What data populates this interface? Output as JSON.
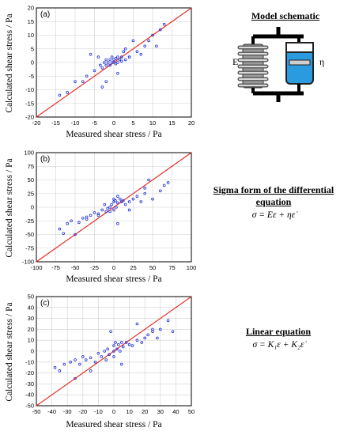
{
  "panels": [
    {
      "label": "(a)",
      "ylabel": "Calculated shear stress / Pa",
      "xlabel": "Measured shear stress / Pa",
      "ticks": [
        -20,
        -15,
        -10,
        -5,
        0,
        5,
        10,
        15,
        20
      ]
    },
    {
      "label": "(b)",
      "ylabel": "Calculated shear stress / Pa",
      "xlabel": "Measured shear stress / Pa",
      "ticks": [
        -100,
        -75,
        -50,
        -25,
        0,
        25,
        50,
        75,
        100
      ]
    },
    {
      "label": "(c)",
      "ylabel": "Calculated shear stress / Pa",
      "xlabel": "Measured shear stress / Pa",
      "ticks": [
        -50,
        -40,
        -30,
        -20,
        -10,
        0,
        10,
        20,
        30,
        40,
        50
      ]
    }
  ],
  "side": {
    "schematic_title": "Model schematic",
    "spring_label": "E",
    "dashpot_label": "η",
    "sigma_title": "Sigma form of the differential equation",
    "sigma_eq": "σ = Eε + ηε̇",
    "linear_title": "Linear equation",
    "linear_eq": "σ = K₁ε + K₂ε̇"
  },
  "colors": {
    "points": "#1f2fd6",
    "line": "#e8231f",
    "grid": "#d0d0d0"
  },
  "chart_data": [
    {
      "type": "scatter",
      "title": "(a)",
      "xlabel": "Measured shear stress / Pa",
      "ylabel": "Calculated shear stress / Pa",
      "xlim": [
        -20,
        20
      ],
      "ylim": [
        -20,
        20
      ],
      "grid": true,
      "reference_line": "y = x",
      "x": [
        -14,
        -12,
        -10,
        -8,
        -7,
        -5,
        -4,
        -3.5,
        -3,
        -2.5,
        -2,
        -2,
        -1.5,
        -1,
        -1,
        -0.5,
        -0.5,
        0,
        0,
        0.5,
        0.5,
        1,
        1,
        1.5,
        2,
        2,
        3,
        3,
        4,
        5,
        6,
        7,
        8,
        10,
        11,
        12,
        13,
        -3,
        -2,
        1,
        2.5,
        4,
        -6,
        9
      ],
      "y": [
        -12,
        -11,
        -7,
        -7,
        -5,
        -3,
        2,
        -1,
        -2,
        0,
        -1,
        1,
        0,
        -1,
        1,
        0,
        2,
        0,
        1,
        -0.5,
        1.5,
        0,
        2,
        1,
        0.5,
        2,
        1,
        5,
        2,
        8,
        4,
        3,
        6,
        10,
        6,
        12,
        14,
        -9,
        -7,
        -4,
        4,
        2,
        3,
        8
      ]
    },
    {
      "type": "scatter",
      "title": "(b)",
      "xlabel": "Measured shear stress / Pa",
      "ylabel": "Calculated shear stress / Pa",
      "xlim": [
        -100,
        100
      ],
      "ylim": [
        -100,
        100
      ],
      "grid": true,
      "reference_line": "y = x",
      "x": [
        -70,
        -65,
        -60,
        -55,
        -45,
        -40,
        -35,
        -30,
        -25,
        -20,
        -15,
        -12,
        -10,
        -8,
        -5,
        -3,
        0,
        0,
        0,
        2,
        3,
        5,
        5,
        8,
        10,
        12,
        15,
        20,
        25,
        30,
        35,
        40,
        45,
        50,
        60,
        65,
        -50,
        -35,
        -20,
        -5,
        5,
        20,
        40,
        70
      ],
      "y": [
        -40,
        -48,
        -30,
        -25,
        -28,
        -20,
        -18,
        -15,
        -10,
        -12,
        -5,
        5,
        -8,
        -2,
        0,
        5,
        10,
        -5,
        15,
        12,
        0,
        -30,
        8,
        15,
        10,
        12,
        5,
        10,
        15,
        20,
        10,
        25,
        50,
        15,
        30,
        40,
        -50,
        -22,
        -15,
        -8,
        20,
        -5,
        35,
        45
      ]
    },
    {
      "type": "scatter",
      "title": "(c)",
      "xlabel": "Measured shear stress / Pa",
      "ylabel": "Calculated shear stress / Pa",
      "xlim": [
        -50,
        50
      ],
      "ylim": [
        -50,
        50
      ],
      "grid": true,
      "reference_line": "y = x",
      "x": [
        -38,
        -35,
        -32,
        -28,
        -25,
        -22,
        -20,
        -18,
        -15,
        -12,
        -10,
        -8,
        -6,
        -4,
        -3,
        -2,
        0,
        0,
        0,
        1,
        2,
        3,
        4,
        5,
        6,
        8,
        10,
        12,
        15,
        18,
        20,
        22,
        25,
        28,
        30,
        35,
        38,
        -25,
        -15,
        -5,
        5,
        15,
        25
      ],
      "y": [
        -15,
        -18,
        -12,
        -10,
        -8,
        -12,
        -5,
        -8,
        -6,
        -10,
        -2,
        -5,
        0,
        2,
        -3,
        18,
        0,
        5,
        -5,
        8,
        2,
        6,
        0,
        -12,
        4,
        8,
        6,
        5,
        10,
        8,
        12,
        15,
        18,
        12,
        20,
        28,
        18,
        -25,
        -18,
        -8,
        8,
        25,
        20
      ]
    }
  ]
}
